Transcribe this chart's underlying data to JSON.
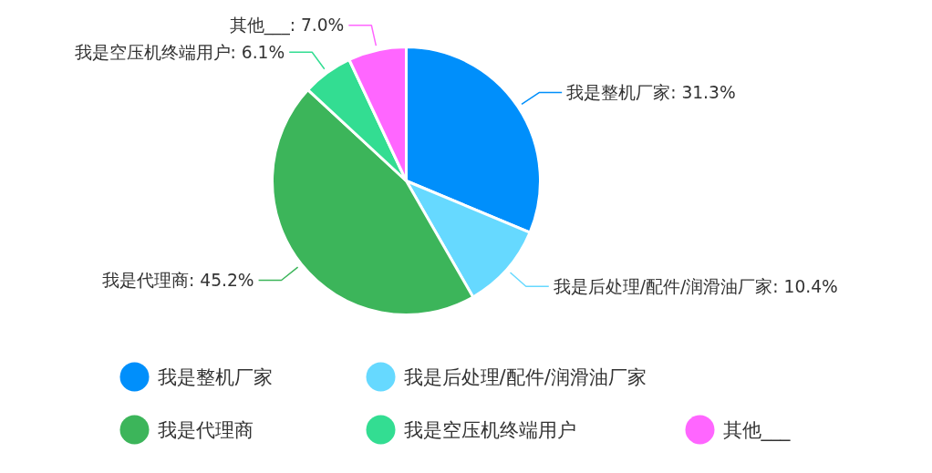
{
  "chart_data": {
    "type": "pie",
    "categories": [
      "我是整机厂家",
      "我是后处理/配件/润滑油厂家",
      "我是代理商",
      "我是空压机终端用户",
      "其他___"
    ],
    "values": [
      31.3,
      10.4,
      45.2,
      6.1,
      7.0
    ],
    "value_labels": [
      "我是整机厂家: 31.3%",
      "我是后处理/配件/润滑油厂家: 10.4%",
      "我是代理商: 45.2%",
      "我是空压机终端用户: 6.1%",
      "其他___: 7.0%"
    ],
    "colors": [
      "#008ffb",
      "#66d9ff",
      "#3cb55a",
      "#33dd92",
      "#ff66ff"
    ],
    "legend": "bottom"
  }
}
